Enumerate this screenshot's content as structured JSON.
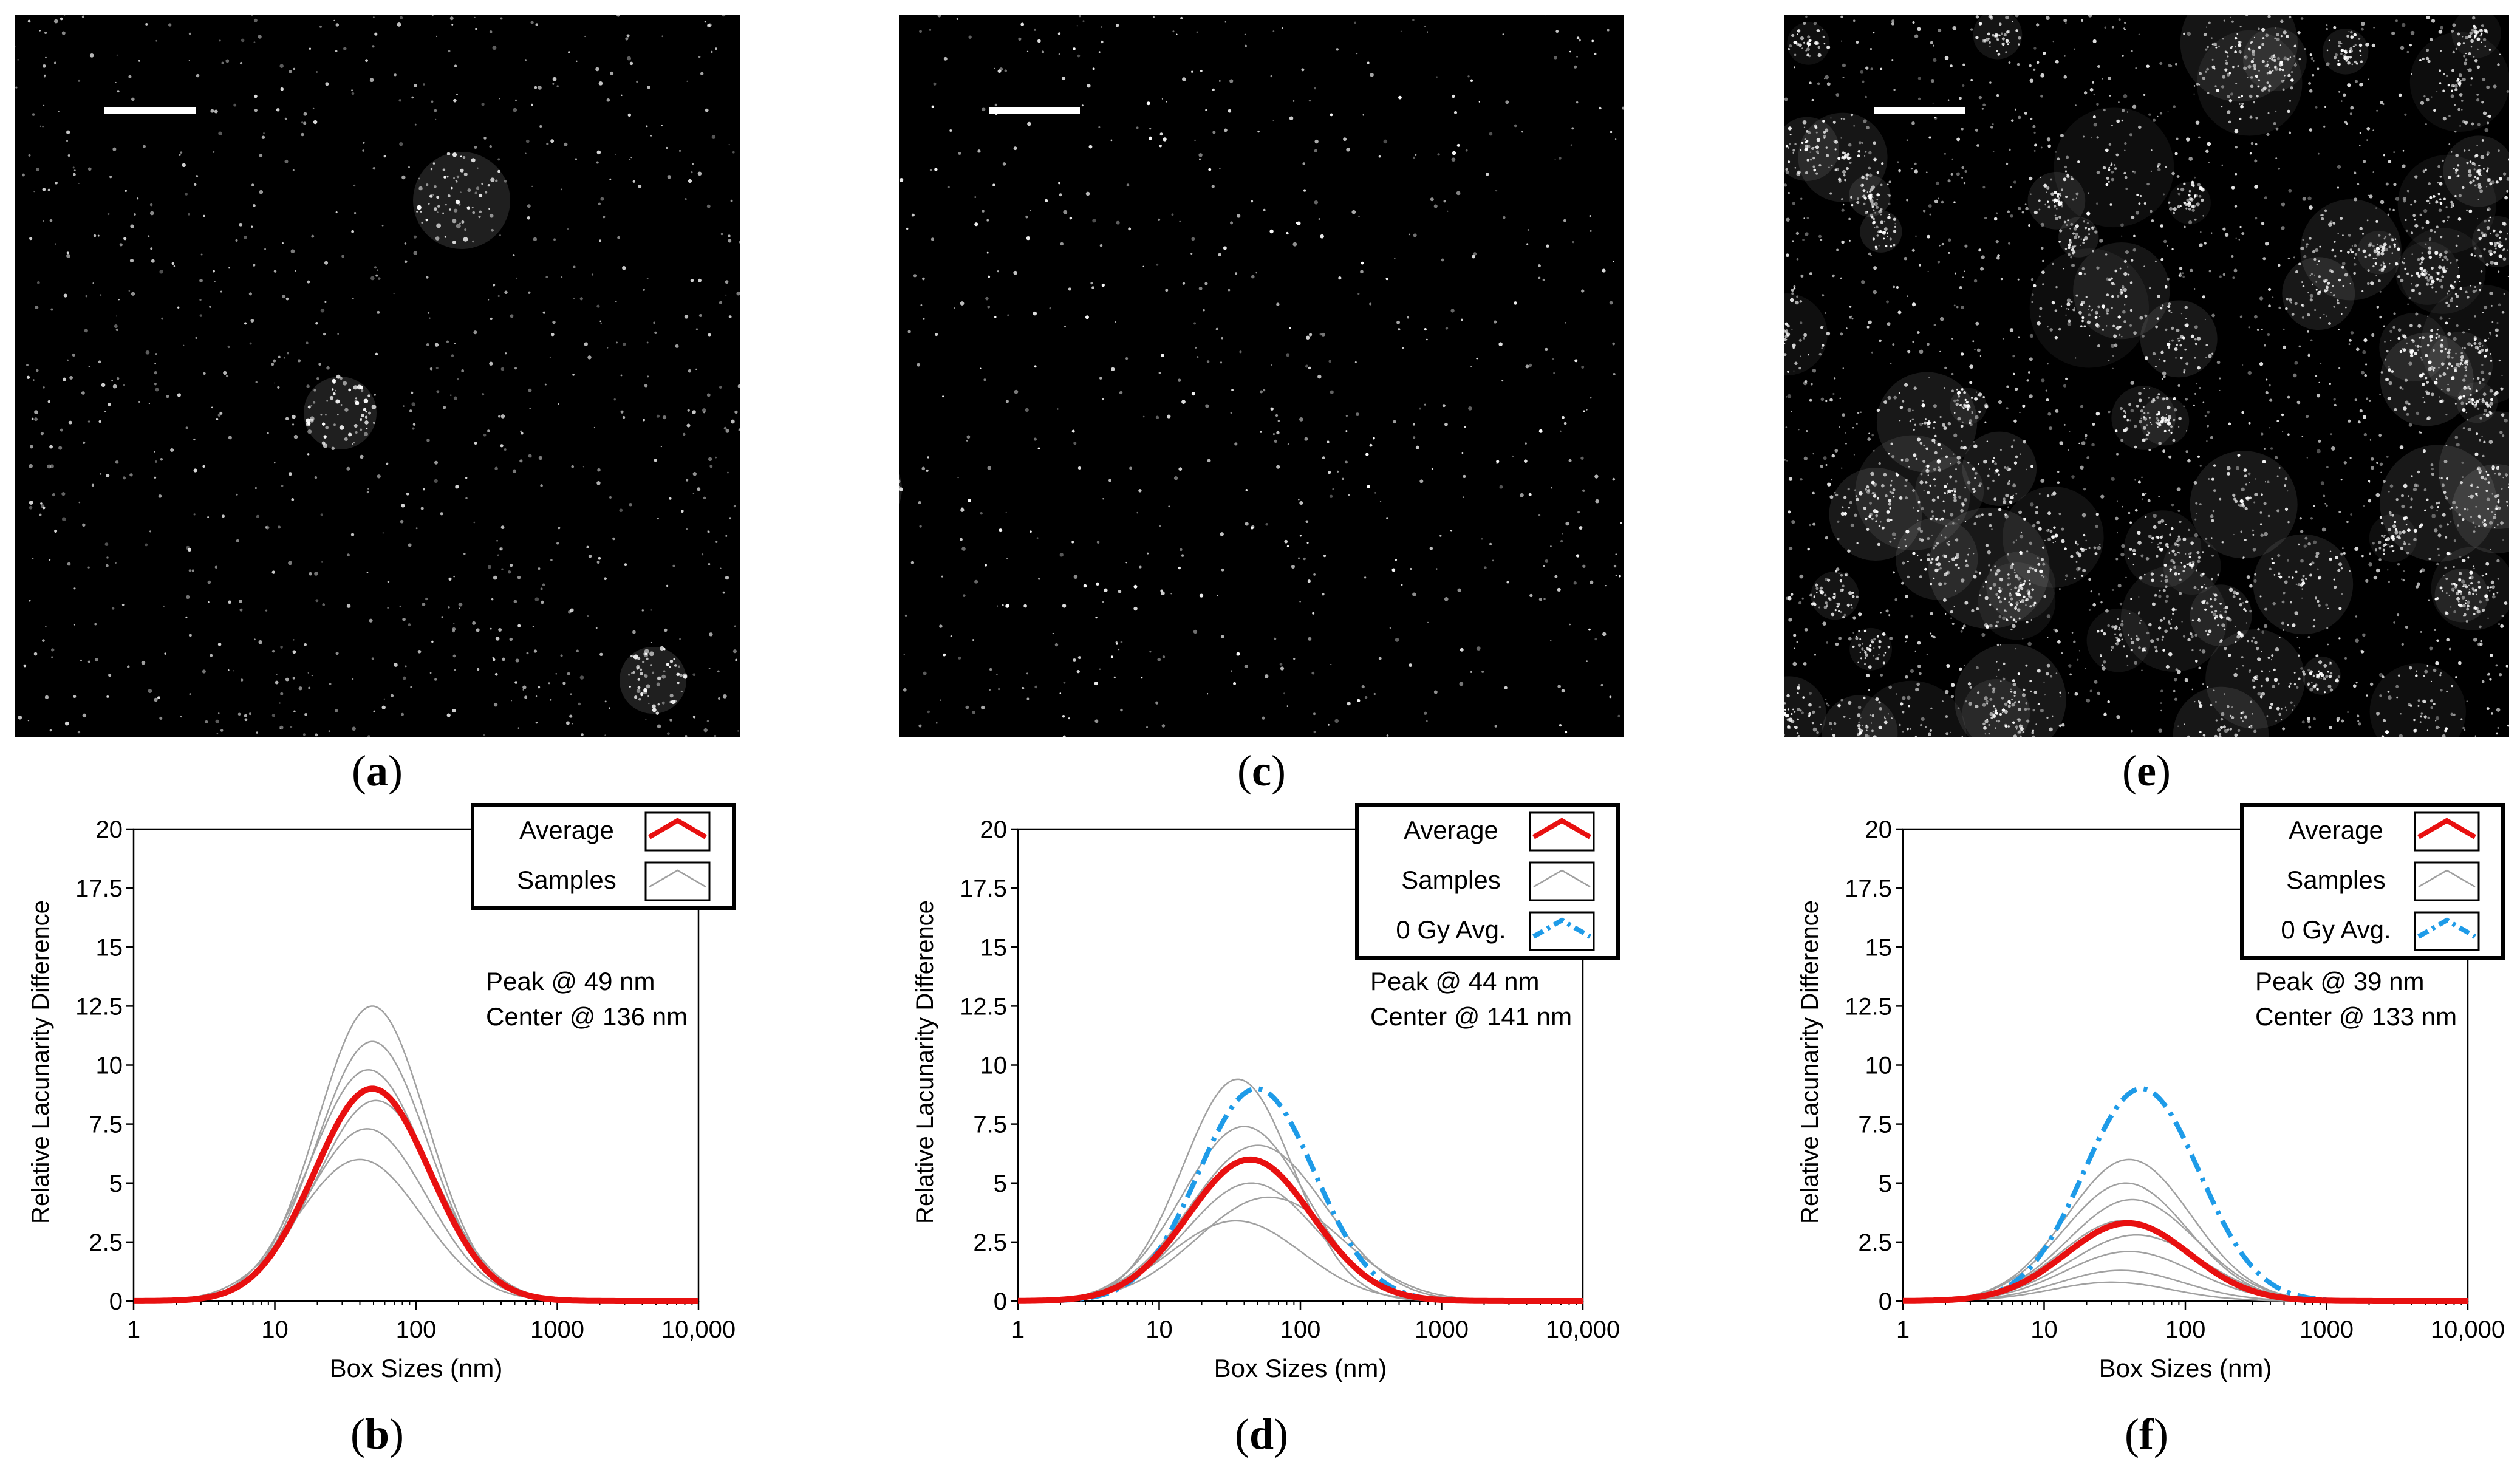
{
  "panels": {
    "a": {
      "caption": "a"
    },
    "b": {
      "caption": "b"
    },
    "c": {
      "caption": "c"
    },
    "d": {
      "caption": "d"
    },
    "e": {
      "caption": "e"
    },
    "f": {
      "caption": "f"
    }
  },
  "chart_data": [
    {
      "id": "b",
      "type": "line",
      "xscale": "log",
      "xlabel": "Box Sizes (nm)",
      "ylabel": "Relative Lacunarity Difference",
      "ylim": [
        0,
        20
      ],
      "xlim": [
        1,
        10000
      ],
      "x_ticks": [
        "1",
        "10",
        "100",
        "1000",
        "10,000"
      ],
      "y_ticks": [
        "0",
        "2.5",
        "5",
        "7.5",
        "10",
        "12.5",
        "15",
        "17.5",
        "20"
      ],
      "legend": [
        {
          "label": "Average",
          "color": "#e81010"
        },
        {
          "label": "Samples",
          "color": "#a0a0a0"
        }
      ],
      "annotation": [
        "Peak @ 49 nm",
        "Center @ 136 nm"
      ],
      "series": [
        {
          "name": "Average",
          "peak_x": 49,
          "peak_y": 9.0,
          "width": 0.58,
          "color": "#e81010"
        },
        {
          "name": "Samples",
          "color": "#a0a0a0",
          "curves": [
            {
              "peak_x": 49,
              "peak_y": 12.5,
              "width": 0.55
            },
            {
              "peak_x": 49,
              "peak_y": 11.0,
              "width": 0.56
            },
            {
              "peak_x": 46,
              "peak_y": 9.8,
              "width": 0.58
            },
            {
              "peak_x": 52,
              "peak_y": 8.5,
              "width": 0.6
            },
            {
              "peak_x": 45,
              "peak_y": 7.3,
              "width": 0.6
            },
            {
              "peak_x": 40,
              "peak_y": 6.0,
              "width": 0.62
            }
          ]
        }
      ]
    },
    {
      "id": "d",
      "type": "line",
      "xscale": "log",
      "xlabel": "Box Sizes (nm)",
      "ylabel": "Relative Lacunarity Difference",
      "ylim": [
        0,
        20
      ],
      "xlim": [
        1,
        10000
      ],
      "x_ticks": [
        "1",
        "10",
        "100",
        "1000",
        "10,000"
      ],
      "y_ticks": [
        "0",
        "2.5",
        "5",
        "7.5",
        "10",
        "12.5",
        "15",
        "17.5",
        "20"
      ],
      "legend": [
        {
          "label": "Average",
          "color": "#e81010"
        },
        {
          "label": "Samples",
          "color": "#a0a0a0"
        },
        {
          "label": "0 Gy Avg.",
          "color": "#1e9be8"
        }
      ],
      "annotation": [
        "Peak @ 44 nm",
        "Center @ 141 nm"
      ],
      "series": [
        {
          "name": "Average",
          "peak_x": 44,
          "peak_y": 6.0,
          "width": 0.62,
          "color": "#e81010"
        },
        {
          "name": "0 Gy Avg.",
          "peak_x": 49,
          "peak_y": 9.0,
          "width": 0.58,
          "color": "#1e9be8"
        },
        {
          "name": "Samples",
          "color": "#a0a0a0",
          "curves": [
            {
              "peak_x": 36,
              "peak_y": 9.4,
              "width": 0.55
            },
            {
              "peak_x": 40,
              "peak_y": 7.4,
              "width": 0.62
            },
            {
              "peak_x": 50,
              "peak_y": 6.6,
              "width": 0.68
            },
            {
              "peak_x": 45,
              "peak_y": 5.0,
              "width": 0.65
            },
            {
              "peak_x": 60,
              "peak_y": 4.4,
              "width": 0.72
            },
            {
              "peak_x": 35,
              "peak_y": 3.4,
              "width": 0.66
            }
          ]
        }
      ]
    },
    {
      "id": "f",
      "type": "line",
      "xscale": "log",
      "xlabel": "Box Sizes (nm)",
      "ylabel": "Relative Lacunarity Difference",
      "ylim": [
        0,
        20
      ],
      "xlim": [
        1,
        10000
      ],
      "x_ticks": [
        "1",
        "10",
        "100",
        "1000",
        "10,000"
      ],
      "y_ticks": [
        "0",
        "2.5",
        "5",
        "7.5",
        "10",
        "12.5",
        "15",
        "17.5",
        "20"
      ],
      "legend": [
        {
          "label": "Average",
          "color": "#e81010"
        },
        {
          "label": "Samples",
          "color": "#a0a0a0"
        },
        {
          "label": "0 Gy Avg.",
          "color": "#1e9be8"
        }
      ],
      "annotation": [
        "Peak @ 39 nm",
        "Center @ 133 nm"
      ],
      "series": [
        {
          "name": "Average",
          "peak_x": 39,
          "peak_y": 3.3,
          "width": 0.62,
          "color": "#e81010"
        },
        {
          "name": "0 Gy Avg.",
          "peak_x": 49,
          "peak_y": 9.0,
          "width": 0.58,
          "color": "#1e9be8"
        },
        {
          "name": "Samples",
          "color": "#a0a0a0",
          "curves": [
            {
              "peak_x": 40,
              "peak_y": 6.0,
              "width": 0.62
            },
            {
              "peak_x": 38,
              "peak_y": 5.0,
              "width": 0.62
            },
            {
              "peak_x": 42,
              "peak_y": 4.3,
              "width": 0.64
            },
            {
              "peak_x": 36,
              "peak_y": 3.4,
              "width": 0.62
            },
            {
              "peak_x": 45,
              "peak_y": 2.8,
              "width": 0.66
            },
            {
              "peak_x": 40,
              "peak_y": 2.1,
              "width": 0.64
            },
            {
              "peak_x": 35,
              "peak_y": 1.3,
              "width": 0.62
            },
            {
              "peak_x": 30,
              "peak_y": 0.8,
              "width": 0.6
            }
          ]
        }
      ]
    }
  ]
}
